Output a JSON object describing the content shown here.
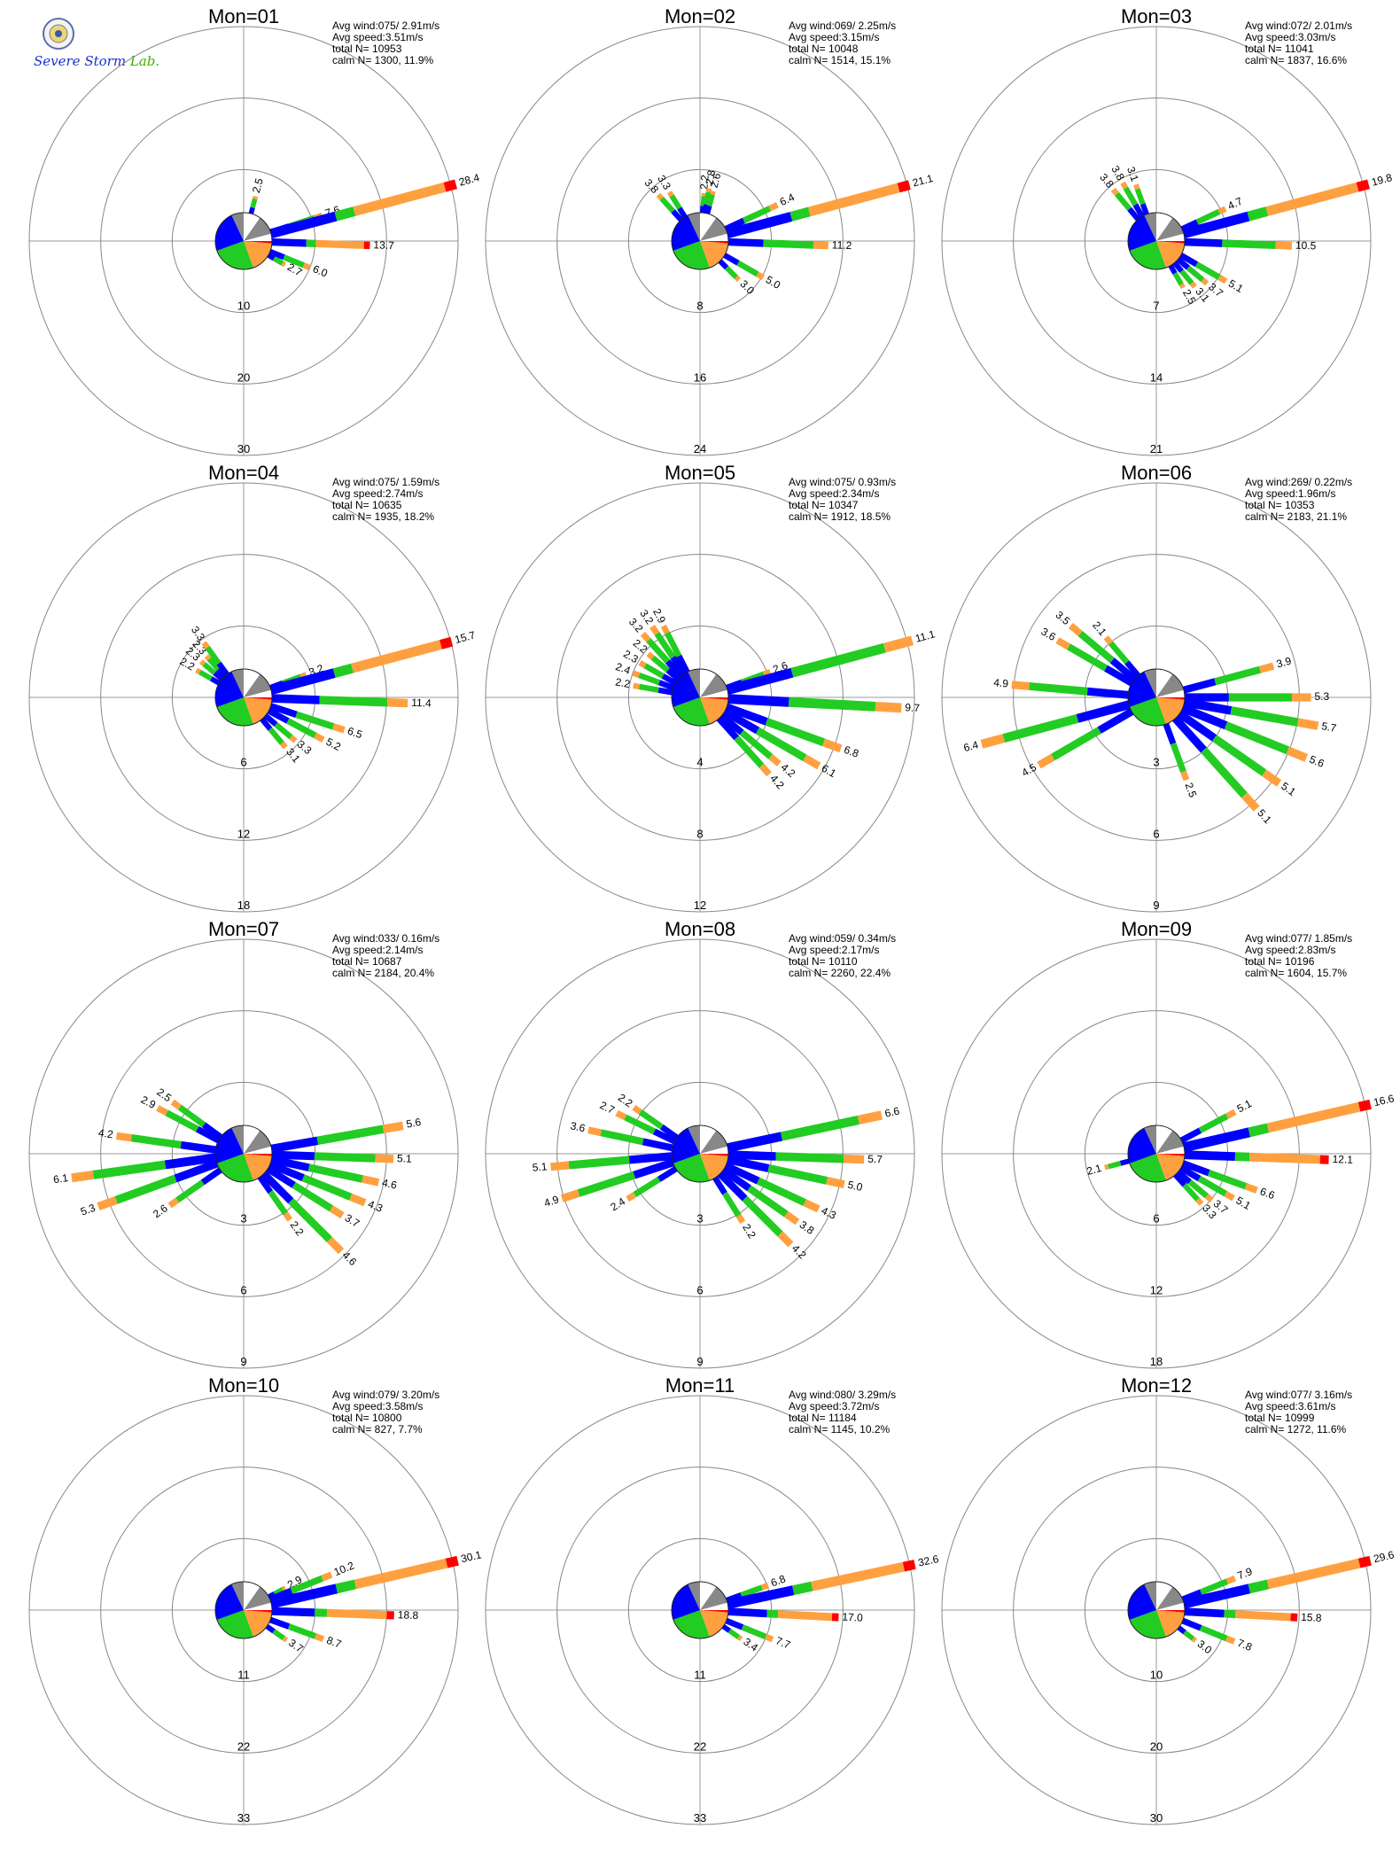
{
  "logo": {
    "text": "Severe Storm",
    "lab": "Lab."
  },
  "stat_labels": {
    "wind": "Avg wind:",
    "speed": "Avg speed:",
    "total": "total N=",
    "calm": "calm N="
  },
  "colors": {
    "c1": "#0000ff",
    "c2": "#22cc22",
    "c3": "#888888",
    "c4": "#ffa040",
    "c5": "#ff0000",
    "axis": "#999999",
    "ring": "#888888"
  },
  "chart_data": [
    {
      "type": "windrose",
      "title": "Mon=01",
      "avg_wind": "075/ 2.91m/s",
      "avg_speed": "3.51m/s",
      "total_n": "10953",
      "calm_n": "1300,  11.9%",
      "rings": [
        "10",
        "20",
        "30"
      ],
      "rmax": 30,
      "petal_labels": [
        {
          "dir": 15,
          "value": "2.5"
        },
        {
          "dir": 72,
          "value": "7.6"
        },
        {
          "dir": 75,
          "value": "28.4"
        },
        {
          "dir": 92,
          "value": "13.7"
        },
        {
          "dir": 112,
          "value": "6.0"
        },
        {
          "dir": 120,
          "value": "2.7"
        }
      ]
    },
    {
      "type": "windrose",
      "title": "Mon=02",
      "avg_wind": "069/ 2.25m/s",
      "avg_speed": "3.15m/s",
      "total_n": "10048",
      "calm_n": "1514,  15.1%",
      "rings": [
        "8",
        "16",
        "24"
      ],
      "rmax": 24,
      "petal_labels": [
        {
          "dir": 318,
          "value": "3.8"
        },
        {
          "dir": 328,
          "value": "3.3"
        },
        {
          "dir": 5,
          "value": "2.2"
        },
        {
          "dir": 10,
          "value": "2.8"
        },
        {
          "dir": 15,
          "value": "2.6"
        },
        {
          "dir": 65,
          "value": "6.4"
        },
        {
          "dir": 75,
          "value": "21.1"
        },
        {
          "dir": 92,
          "value": "11.2"
        },
        {
          "dir": 120,
          "value": "5.0"
        },
        {
          "dir": 135,
          "value": "3.0"
        }
      ]
    },
    {
      "type": "windrose",
      "title": "Mon=03",
      "avg_wind": "072/ 2.01m/s",
      "avg_speed": "3.03m/s",
      "total_n": "11041",
      "calm_n": "1837,  16.6%",
      "rings": [
        "7",
        "14",
        "21"
      ],
      "rmax": 21,
      "petal_labels": [
        {
          "dir": 320,
          "value": "3.8"
        },
        {
          "dir": 330,
          "value": "3.8"
        },
        {
          "dir": 340,
          "value": "3.1"
        },
        {
          "dir": 65,
          "value": "4.7"
        },
        {
          "dir": 75,
          "value": "19.8"
        },
        {
          "dir": 92,
          "value": "10.5"
        },
        {
          "dir": 120,
          "value": "5.1"
        },
        {
          "dir": 130,
          "value": "3.7"
        },
        {
          "dir": 140,
          "value": "3.1"
        },
        {
          "dir": 150,
          "value": "2.5"
        }
      ]
    },
    {
      "type": "windrose",
      "title": "Mon=04",
      "avg_wind": "075/ 1.59m/s",
      "avg_speed": "2.74m/s",
      "total_n": "10635",
      "calm_n": "1935,  18.2%",
      "rings": [
        "6",
        "12",
        "18"
      ],
      "rmax": 18,
      "petal_labels": [
        {
          "dir": 300,
          "value": "2.2"
        },
        {
          "dir": 310,
          "value": "2.3"
        },
        {
          "dir": 318,
          "value": "2.3"
        },
        {
          "dir": 324,
          "value": "3.3"
        },
        {
          "dir": 70,
          "value": "3.2"
        },
        {
          "dir": 75,
          "value": "15.7"
        },
        {
          "dir": 92,
          "value": "11.4"
        },
        {
          "dir": 108,
          "value": "6.5"
        },
        {
          "dir": 118,
          "value": "5.2"
        },
        {
          "dir": 130,
          "value": "3.3"
        },
        {
          "dir": 140,
          "value": "3.1"
        }
      ]
    },
    {
      "type": "windrose",
      "title": "Mon=05",
      "avg_wind": "075/ 0.93m/s",
      "avg_speed": "2.34m/s",
      "total_n": "10347",
      "calm_n": "1912,  18.5%",
      "rings": [
        "4",
        "8",
        "12"
      ],
      "rmax": 12,
      "petal_labels": [
        {
          "dir": 280,
          "value": "2.2"
        },
        {
          "dir": 290,
          "value": "2.4"
        },
        {
          "dir": 300,
          "value": "2.3"
        },
        {
          "dir": 310,
          "value": "2.2"
        },
        {
          "dir": 318,
          "value": "3.2"
        },
        {
          "dir": 326,
          "value": "3.2"
        },
        {
          "dir": 333,
          "value": "2.9"
        },
        {
          "dir": 70,
          "value": "2.6"
        },
        {
          "dir": 75,
          "value": "11.1"
        },
        {
          "dir": 93,
          "value": "9.7"
        },
        {
          "dir": 110,
          "value": "6.8"
        },
        {
          "dir": 120,
          "value": "6.1"
        },
        {
          "dir": 130,
          "value": "4.2"
        },
        {
          "dir": 138,
          "value": "4.2"
        }
      ]
    },
    {
      "type": "windrose",
      "title": "Mon=06",
      "avg_wind": "269/ 0.22m/s",
      "avg_speed": "1.96m/s",
      "total_n": "10353",
      "calm_n": "2183,  21.1%",
      "rings": [
        "3",
        "6",
        "9"
      ],
      "rmax": 9,
      "petal_labels": [
        {
          "dir": 255,
          "value": "6.4"
        },
        {
          "dir": 240,
          "value": "4.5"
        },
        {
          "dir": 275,
          "value": "4.9"
        },
        {
          "dir": 300,
          "value": "3.6"
        },
        {
          "dir": 310,
          "value": "3.5"
        },
        {
          "dir": 320,
          "value": "2.1"
        },
        {
          "dir": 75,
          "value": "3.9"
        },
        {
          "dir": 90,
          "value": "5.3"
        },
        {
          "dir": 100,
          "value": "5.7"
        },
        {
          "dir": 112,
          "value": "5.6"
        },
        {
          "dir": 125,
          "value": "5.1"
        },
        {
          "dir": 138,
          "value": "5.1"
        },
        {
          "dir": 160,
          "value": "2.5"
        }
      ]
    },
    {
      "type": "windrose",
      "title": "Mon=07",
      "avg_wind": "033/ 0.16m/s",
      "avg_speed": "2.14m/s",
      "total_n": "10687",
      "calm_n": "2184,  20.4%",
      "rings": [
        "3",
        "6",
        "9"
      ],
      "rmax": 9,
      "petal_labels": [
        {
          "dir": 250,
          "value": "5.3"
        },
        {
          "dir": 262,
          "value": "6.1"
        },
        {
          "dir": 278,
          "value": "4.2"
        },
        {
          "dir": 298,
          "value": "2.9"
        },
        {
          "dir": 306,
          "value": "2.5"
        },
        {
          "dir": 235,
          "value": "2.6"
        },
        {
          "dir": 80,
          "value": "5.6"
        },
        {
          "dir": 92,
          "value": "5.1"
        },
        {
          "dir": 102,
          "value": "4.6"
        },
        {
          "dir": 112,
          "value": "4.3"
        },
        {
          "dir": 122,
          "value": "3.7"
        },
        {
          "dir": 135,
          "value": "4.6"
        },
        {
          "dir": 145,
          "value": "2.2"
        }
      ]
    },
    {
      "type": "windrose",
      "title": "Mon=08",
      "avg_wind": "059/ 0.34m/s",
      "avg_speed": "2.17m/s",
      "total_n": "10110",
      "calm_n": "2260,  22.4%",
      "rings": [
        "3",
        "6",
        "9"
      ],
      "rmax": 9,
      "petal_labels": [
        {
          "dir": 252,
          "value": "4.9"
        },
        {
          "dir": 265,
          "value": "5.1"
        },
        {
          "dir": 282,
          "value": "3.6"
        },
        {
          "dir": 296,
          "value": "2.7"
        },
        {
          "dir": 305,
          "value": "2.2"
        },
        {
          "dir": 238,
          "value": "2.4"
        },
        {
          "dir": 78,
          "value": "6.6"
        },
        {
          "dir": 92,
          "value": "5.7"
        },
        {
          "dir": 102,
          "value": "5.0"
        },
        {
          "dir": 115,
          "value": "4.3"
        },
        {
          "dir": 125,
          "value": "3.8"
        },
        {
          "dir": 135,
          "value": "4.2"
        },
        {
          "dir": 148,
          "value": "2.2"
        }
      ]
    },
    {
      "type": "windrose",
      "title": "Mon=09",
      "avg_wind": "077/ 1.85m/s",
      "avg_speed": "2.83m/s",
      "total_n": "10196",
      "calm_n": "1604,  15.7%",
      "rings": [
        "6",
        "12",
        "18"
      ],
      "rmax": 18,
      "petal_labels": [
        {
          "dir": 255,
          "value": "2.1"
        },
        {
          "dir": 62,
          "value": "5.1"
        },
        {
          "dir": 77,
          "value": "16.6"
        },
        {
          "dir": 92,
          "value": "12.1"
        },
        {
          "dir": 110,
          "value": "6.6"
        },
        {
          "dir": 120,
          "value": "5.1"
        },
        {
          "dir": 130,
          "value": "3.7"
        },
        {
          "dir": 138,
          "value": "3.3"
        }
      ]
    },
    {
      "type": "windrose",
      "title": "Mon=10",
      "avg_wind": "079/ 3.20m/s",
      "avg_speed": "3.58m/s",
      "total_n": "10800",
      "calm_n": "827,   7.7%",
      "rings": [
        "11",
        "22",
        "33"
      ],
      "rmax": 33,
      "petal_labels": [
        {
          "dir": 62,
          "value": "2.9"
        },
        {
          "dir": 68,
          "value": "10.2"
        },
        {
          "dir": 77,
          "value": "30.1"
        },
        {
          "dir": 92,
          "value": "18.8"
        },
        {
          "dir": 110,
          "value": "8.7"
        },
        {
          "dir": 125,
          "value": "3.7"
        }
      ]
    },
    {
      "type": "windrose",
      "title": "Mon=11",
      "avg_wind": "080/ 3.29m/s",
      "avg_speed": "3.72m/s",
      "total_n": "11184",
      "calm_n": "1145,  10.2%",
      "rings": [
        "11",
        "22",
        "33"
      ],
      "rmax": 33,
      "petal_labels": [
        {
          "dir": 70,
          "value": "6.8"
        },
        {
          "dir": 78,
          "value": "32.6"
        },
        {
          "dir": 93,
          "value": "17.0"
        },
        {
          "dir": 112,
          "value": "7.7"
        },
        {
          "dir": 125,
          "value": "3.4"
        }
      ]
    },
    {
      "type": "windrose",
      "title": "Mon=12",
      "avg_wind": "077/ 3.16m/s",
      "avg_speed": "3.61m/s",
      "total_n": "10999",
      "calm_n": "1272,  11.6%",
      "rings": [
        "10",
        "20",
        "30"
      ],
      "rmax": 30,
      "petal_labels": [
        {
          "dir": 68,
          "value": "7.9"
        },
        {
          "dir": 77,
          "value": "29.6"
        },
        {
          "dir": 93,
          "value": "15.8"
        },
        {
          "dir": 112,
          "value": "7.8"
        },
        {
          "dir": 128,
          "value": "3.0"
        }
      ]
    }
  ]
}
